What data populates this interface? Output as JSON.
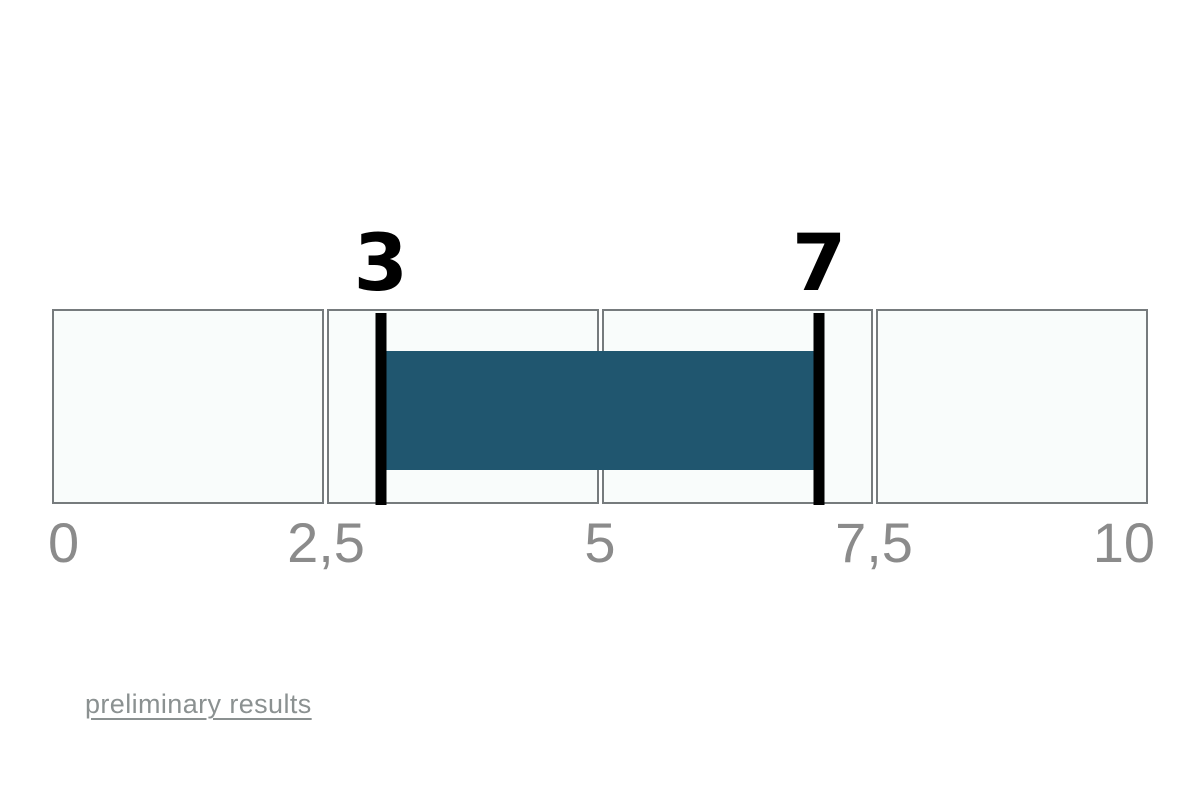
{
  "chart_data": {
    "type": "range-bar",
    "axis": {
      "min": 0,
      "max": 10,
      "tick_values": [
        0,
        2.5,
        5,
        7.5,
        10
      ],
      "tick_labels": [
        "0",
        "2,5",
        "5",
        "7,5",
        "10"
      ]
    },
    "range": {
      "start": 3,
      "end": 7,
      "start_label": "3",
      "end_label": "7"
    },
    "colors": {
      "bar": "#20566F",
      "marker": "#000000",
      "segment_fill": "#F9FCFB",
      "segment_border": "#767B7D",
      "tick_labels": "#8B8B8B"
    }
  },
  "footer": {
    "link_label": "preliminary results",
    "link_color": "#8B9191"
  }
}
